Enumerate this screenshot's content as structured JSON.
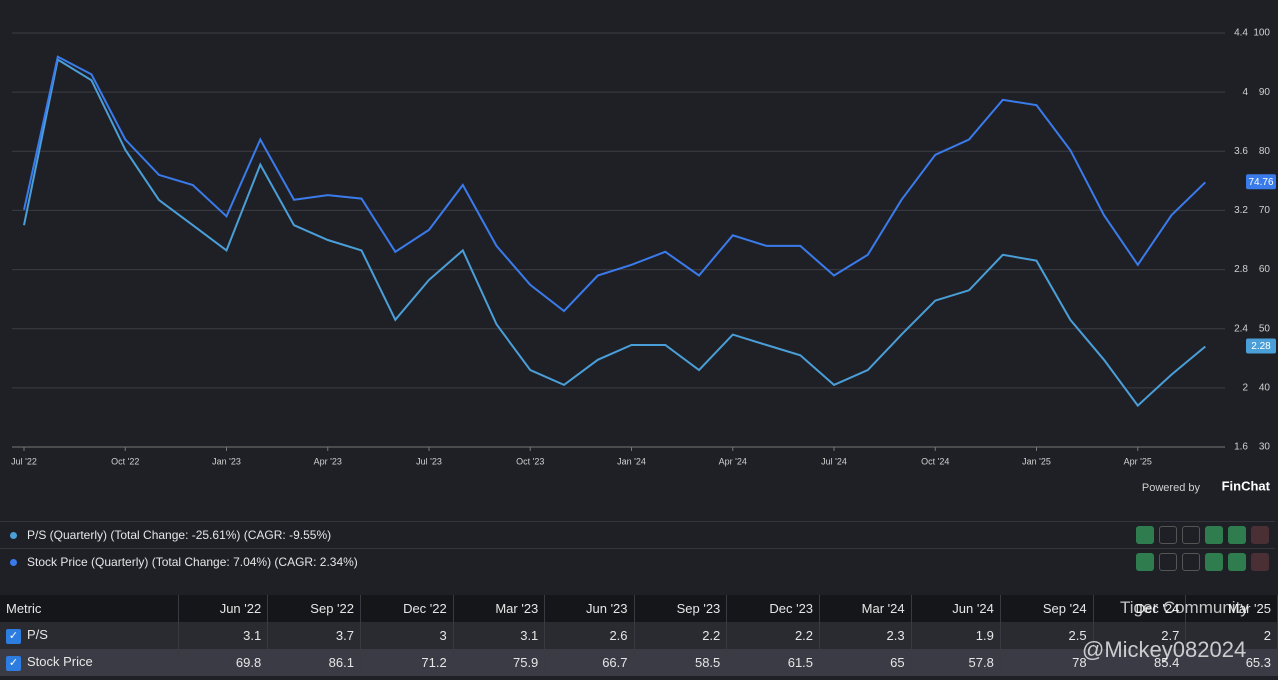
{
  "chart_data": {
    "type": "line",
    "categories": [
      "Jul '22",
      null,
      null,
      "Oct '22",
      null,
      null,
      "Jan '23",
      null,
      null,
      "Apr '23",
      null,
      null,
      "Jul '23",
      null,
      null,
      "Oct '23",
      null,
      null,
      "Jan '24",
      null,
      null,
      "Apr '24",
      null,
      null,
      "Jul '24",
      null,
      null,
      "Oct '24",
      null,
      null,
      "Jan '25",
      null,
      null,
      "Apr '25",
      null,
      null
    ],
    "series": [
      {
        "name": "P/S (Quarterly) (Total Change: -25.61%) (CAGR: -9.55%)",
        "color": "#4a9fd8",
        "values": [
          3.1,
          4.22,
          4.08,
          3.61,
          3.27,
          3.1,
          2.93,
          3.51,
          3.1,
          3.0,
          2.93,
          2.46,
          2.73,
          2.93,
          2.43,
          2.12,
          2.02,
          2.19,
          2.29,
          2.29,
          2.12,
          2.36,
          2.29,
          2.22,
          2.02,
          2.12,
          2.36,
          2.59,
          2.66,
          2.9,
          2.86,
          2.46,
          2.19,
          1.88,
          2.09,
          2.28
        ]
      },
      {
        "name": "Stock Price (Quarterly) (Total Change: 7.04%) (CAGR: 2.34%)",
        "color": "#3a7bec",
        "axis": "y2",
        "values": [
          70.1,
          96,
          93,
          82,
          76,
          74.3,
          69,
          82,
          71.8,
          72.6,
          72,
          63,
          66.7,
          74.3,
          64,
          57.4,
          53,
          59,
          60.8,
          63,
          59,
          65.8,
          64,
          64,
          59,
          62.5,
          71.8,
          79.4,
          82,
          88.7,
          87.8,
          80.2,
          69.2,
          60.8,
          69.2,
          74.76
        ]
      }
    ],
    "ylim": [
      1.6,
      4.4
    ],
    "yticks": [
      1.6,
      2,
      2.4,
      2.8,
      3.2,
      3.6,
      4,
      4.4
    ],
    "y2lim": [
      30,
      100
    ],
    "y2ticks": [
      30,
      40,
      50,
      60,
      70,
      80,
      90,
      100
    ],
    "grid": true
  },
  "branding": {
    "powered": "Powered by",
    "name": "FinChat"
  },
  "table": {
    "header": [
      "Metric",
      "Jun '22",
      "Sep '22",
      "Dec '22",
      "Mar '23",
      "Jun '23",
      "Sep '23",
      "Dec '23",
      "Mar '24",
      "Jun '24",
      "Sep '24",
      "Dec '24",
      "Mar '25"
    ],
    "rows": [
      [
        "P/S",
        "3.1",
        "3.7",
        "3",
        "3.1",
        "2.6",
        "2.2",
        "2.2",
        "2.3",
        "1.9",
        "2.5",
        "2.7",
        "2"
      ],
      [
        "Stock Price",
        "69.8",
        "86.1",
        "71.2",
        "75.9",
        "66.7",
        "58.5",
        "61.5",
        "65",
        "57.8",
        "78",
        "85.4",
        "65.3"
      ]
    ]
  },
  "watermark": {
    "brand": "Tiger Community",
    "user": "@Mickey082024"
  }
}
